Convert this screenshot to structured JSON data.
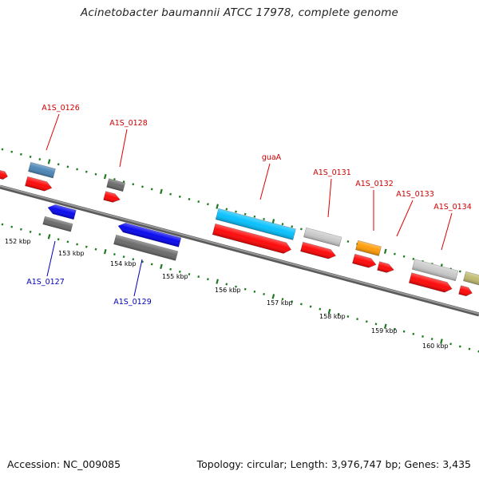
{
  "title": "Acinetobacter baumannii ATCC 17978, complete genome",
  "footer": {
    "accession": "Accession: NC_009085",
    "summary": "Topology: circular; Length: 3,976,747 bp; Genes: 3,435"
  },
  "colors": {
    "backbone": "#808080",
    "tick": "#1f7a1f",
    "top_label": "#cc0000",
    "bottom_label": "#0000bb",
    "leader": "#dd0000",
    "red": "#ff0000",
    "blue": "#0000ee",
    "steelblue": "#4682b4",
    "gray": "#666666",
    "lightgray": "#c8c8c8",
    "cyan": "#00bfff",
    "orange": "#ff9900",
    "khaki": "#bdb76b"
  },
  "axis": {
    "kbp_labels": [
      "152 kbp",
      "153 kbp",
      "154 kbp",
      "155 kbp",
      "156 kbp",
      "157 kbp",
      "158 kbp",
      "159 kbp",
      "160 kbp"
    ]
  },
  "gene_labels_top": [
    "A1S_0126",
    "A1S_0128",
    "guaA",
    "A1S_0131",
    "A1S_0132",
    "A1S_0133",
    "A1S_0134"
  ],
  "gene_labels_bottom": [
    "A1S_0127",
    "A1S_0129"
  ],
  "features": [
    {
      "name": "partial-top-left",
      "color": "red"
    },
    {
      "name": "A1S_0126-gene",
      "color": "steelblue"
    },
    {
      "name": "A1S_0126-cds",
      "color": "red"
    },
    {
      "name": "A1S_0127-gene",
      "color": "blue"
    },
    {
      "name": "A1S_0127-cds",
      "color": "gray"
    },
    {
      "name": "A1S_0128-gene",
      "color": "gray"
    },
    {
      "name": "A1S_0128-cds",
      "color": "red"
    },
    {
      "name": "A1S_0129-gene",
      "color": "blue"
    },
    {
      "name": "A1S_0129-cds",
      "color": "gray"
    },
    {
      "name": "guaA-gene",
      "color": "cyan"
    },
    {
      "name": "guaA-cds",
      "color": "red"
    },
    {
      "name": "A1S_0131-gene",
      "color": "lightgray"
    },
    {
      "name": "A1S_0131-cds",
      "color": "red"
    },
    {
      "name": "A1S_0132-gene",
      "color": "orange"
    },
    {
      "name": "A1S_0132-cds",
      "color": "red"
    },
    {
      "name": "A1S_0133-cds",
      "color": "red"
    },
    {
      "name": "A1S_0134-gene",
      "color": "lightgray"
    },
    {
      "name": "A1S_0134-cds",
      "color": "red"
    },
    {
      "name": "partial-right-gene",
      "color": "khaki"
    },
    {
      "name": "partial-right-cds",
      "color": "red"
    }
  ]
}
